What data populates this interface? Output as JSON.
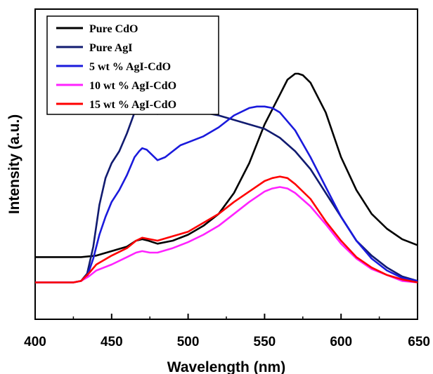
{
  "chart_data": {
    "type": "line",
    "title": "",
    "xlabel": "Wavelength (nm)",
    "ylabel": "Intensity (a.u.)",
    "xlim": [
      400,
      650
    ],
    "ylim": [
      0,
      1
    ],
    "x_ticks": [
      "400",
      "450",
      "500",
      "550",
      "600",
      "650"
    ],
    "y_ticks_shown": false,
    "grid": false,
    "legend_position": "top-left",
    "series": [
      {
        "name": "Pure CdO",
        "color": "#000000",
        "points": [
          [
            400,
            0.185
          ],
          [
            420,
            0.185
          ],
          [
            430,
            0.185
          ],
          [
            440,
            0.19
          ],
          [
            450,
            0.205
          ],
          [
            460,
            0.22
          ],
          [
            466,
            0.24
          ],
          [
            470,
            0.245
          ],
          [
            474,
            0.24
          ],
          [
            480,
            0.23
          ],
          [
            490,
            0.24
          ],
          [
            500,
            0.26
          ],
          [
            510,
            0.29
          ],
          [
            520,
            0.33
          ],
          [
            530,
            0.4
          ],
          [
            540,
            0.5
          ],
          [
            550,
            0.63
          ],
          [
            560,
            0.73
          ],
          [
            565,
            0.78
          ],
          [
            570,
            0.8
          ],
          [
            572,
            0.8
          ],
          [
            575,
            0.795
          ],
          [
            580,
            0.77
          ],
          [
            590,
            0.67
          ],
          [
            600,
            0.52
          ],
          [
            610,
            0.41
          ],
          [
            620,
            0.33
          ],
          [
            630,
            0.28
          ],
          [
            640,
            0.245
          ],
          [
            650,
            0.225
          ]
        ]
      },
      {
        "name": "Pure AgI",
        "color": "#111b70",
        "points": [
          [
            400,
            0.1
          ],
          [
            425,
            0.1
          ],
          [
            430,
            0.105
          ],
          [
            434,
            0.13
          ],
          [
            438,
            0.22
          ],
          [
            442,
            0.36
          ],
          [
            446,
            0.45
          ],
          [
            450,
            0.5
          ],
          [
            455,
            0.54
          ],
          [
            460,
            0.6
          ],
          [
            465,
            0.67
          ],
          [
            468,
            0.71
          ],
          [
            470,
            0.72
          ],
          [
            473,
            0.715
          ],
          [
            476,
            0.69
          ],
          [
            480,
            0.665
          ],
          [
            485,
            0.67
          ],
          [
            490,
            0.675
          ],
          [
            495,
            0.685
          ],
          [
            500,
            0.68
          ],
          [
            510,
            0.67
          ],
          [
            520,
            0.66
          ],
          [
            530,
            0.645
          ],
          [
            540,
            0.63
          ],
          [
            550,
            0.615
          ],
          [
            560,
            0.585
          ],
          [
            570,
            0.54
          ],
          [
            580,
            0.48
          ],
          [
            590,
            0.4
          ],
          [
            600,
            0.32
          ],
          [
            610,
            0.24
          ],
          [
            620,
            0.19
          ],
          [
            630,
            0.15
          ],
          [
            640,
            0.12
          ],
          [
            650,
            0.105
          ]
        ]
      },
      {
        "name": "5 wt % AgI-CdO",
        "color": "#1a1adc",
        "points": [
          [
            400,
            0.1
          ],
          [
            425,
            0.1
          ],
          [
            430,
            0.105
          ],
          [
            434,
            0.12
          ],
          [
            438,
            0.18
          ],
          [
            442,
            0.26
          ],
          [
            446,
            0.32
          ],
          [
            450,
            0.37
          ],
          [
            455,
            0.41
          ],
          [
            460,
            0.46
          ],
          [
            465,
            0.52
          ],
          [
            468,
            0.54
          ],
          [
            470,
            0.55
          ],
          [
            473,
            0.545
          ],
          [
            476,
            0.53
          ],
          [
            480,
            0.51
          ],
          [
            485,
            0.52
          ],
          [
            490,
            0.54
          ],
          [
            495,
            0.56
          ],
          [
            500,
            0.57
          ],
          [
            510,
            0.59
          ],
          [
            520,
            0.62
          ],
          [
            530,
            0.66
          ],
          [
            540,
            0.685
          ],
          [
            545,
            0.69
          ],
          [
            550,
            0.69
          ],
          [
            555,
            0.685
          ],
          [
            560,
            0.67
          ],
          [
            570,
            0.61
          ],
          [
            580,
            0.52
          ],
          [
            590,
            0.42
          ],
          [
            600,
            0.32
          ],
          [
            610,
            0.24
          ],
          [
            620,
            0.18
          ],
          [
            630,
            0.14
          ],
          [
            640,
            0.115
          ],
          [
            650,
            0.105
          ]
        ]
      },
      {
        "name": "10 wt % AgI-CdO",
        "color": "#ff22ff",
        "points": [
          [
            400,
            0.1
          ],
          [
            425,
            0.1
          ],
          [
            430,
            0.105
          ],
          [
            435,
            0.12
          ],
          [
            440,
            0.14
          ],
          [
            450,
            0.16
          ],
          [
            460,
            0.185
          ],
          [
            466,
            0.2
          ],
          [
            470,
            0.205
          ],
          [
            475,
            0.2
          ],
          [
            480,
            0.2
          ],
          [
            490,
            0.215
          ],
          [
            500,
            0.235
          ],
          [
            510,
            0.26
          ],
          [
            520,
            0.29
          ],
          [
            530,
            0.33
          ],
          [
            540,
            0.37
          ],
          [
            550,
            0.405
          ],
          [
            555,
            0.415
          ],
          [
            560,
            0.42
          ],
          [
            565,
            0.415
          ],
          [
            570,
            0.4
          ],
          [
            580,
            0.355
          ],
          [
            590,
            0.295
          ],
          [
            600,
            0.23
          ],
          [
            610,
            0.18
          ],
          [
            620,
            0.145
          ],
          [
            630,
            0.125
          ],
          [
            640,
            0.105
          ],
          [
            650,
            0.1
          ]
        ]
      },
      {
        "name": "15 wt % AgI-CdO",
        "color": "#ff0000",
        "points": [
          [
            400,
            0.1
          ],
          [
            425,
            0.1
          ],
          [
            430,
            0.105
          ],
          [
            435,
            0.13
          ],
          [
            440,
            0.16
          ],
          [
            450,
            0.19
          ],
          [
            460,
            0.215
          ],
          [
            466,
            0.24
          ],
          [
            470,
            0.25
          ],
          [
            475,
            0.245
          ],
          [
            480,
            0.24
          ],
          [
            490,
            0.255
          ],
          [
            500,
            0.27
          ],
          [
            510,
            0.3
          ],
          [
            520,
            0.33
          ],
          [
            530,
            0.37
          ],
          [
            540,
            0.405
          ],
          [
            550,
            0.44
          ],
          [
            555,
            0.45
          ],
          [
            560,
            0.455
          ],
          [
            565,
            0.45
          ],
          [
            570,
            0.43
          ],
          [
            580,
            0.38
          ],
          [
            590,
            0.305
          ],
          [
            600,
            0.24
          ],
          [
            610,
            0.185
          ],
          [
            620,
            0.15
          ],
          [
            630,
            0.125
          ],
          [
            640,
            0.11
          ],
          [
            650,
            0.1
          ]
        ]
      }
    ]
  }
}
